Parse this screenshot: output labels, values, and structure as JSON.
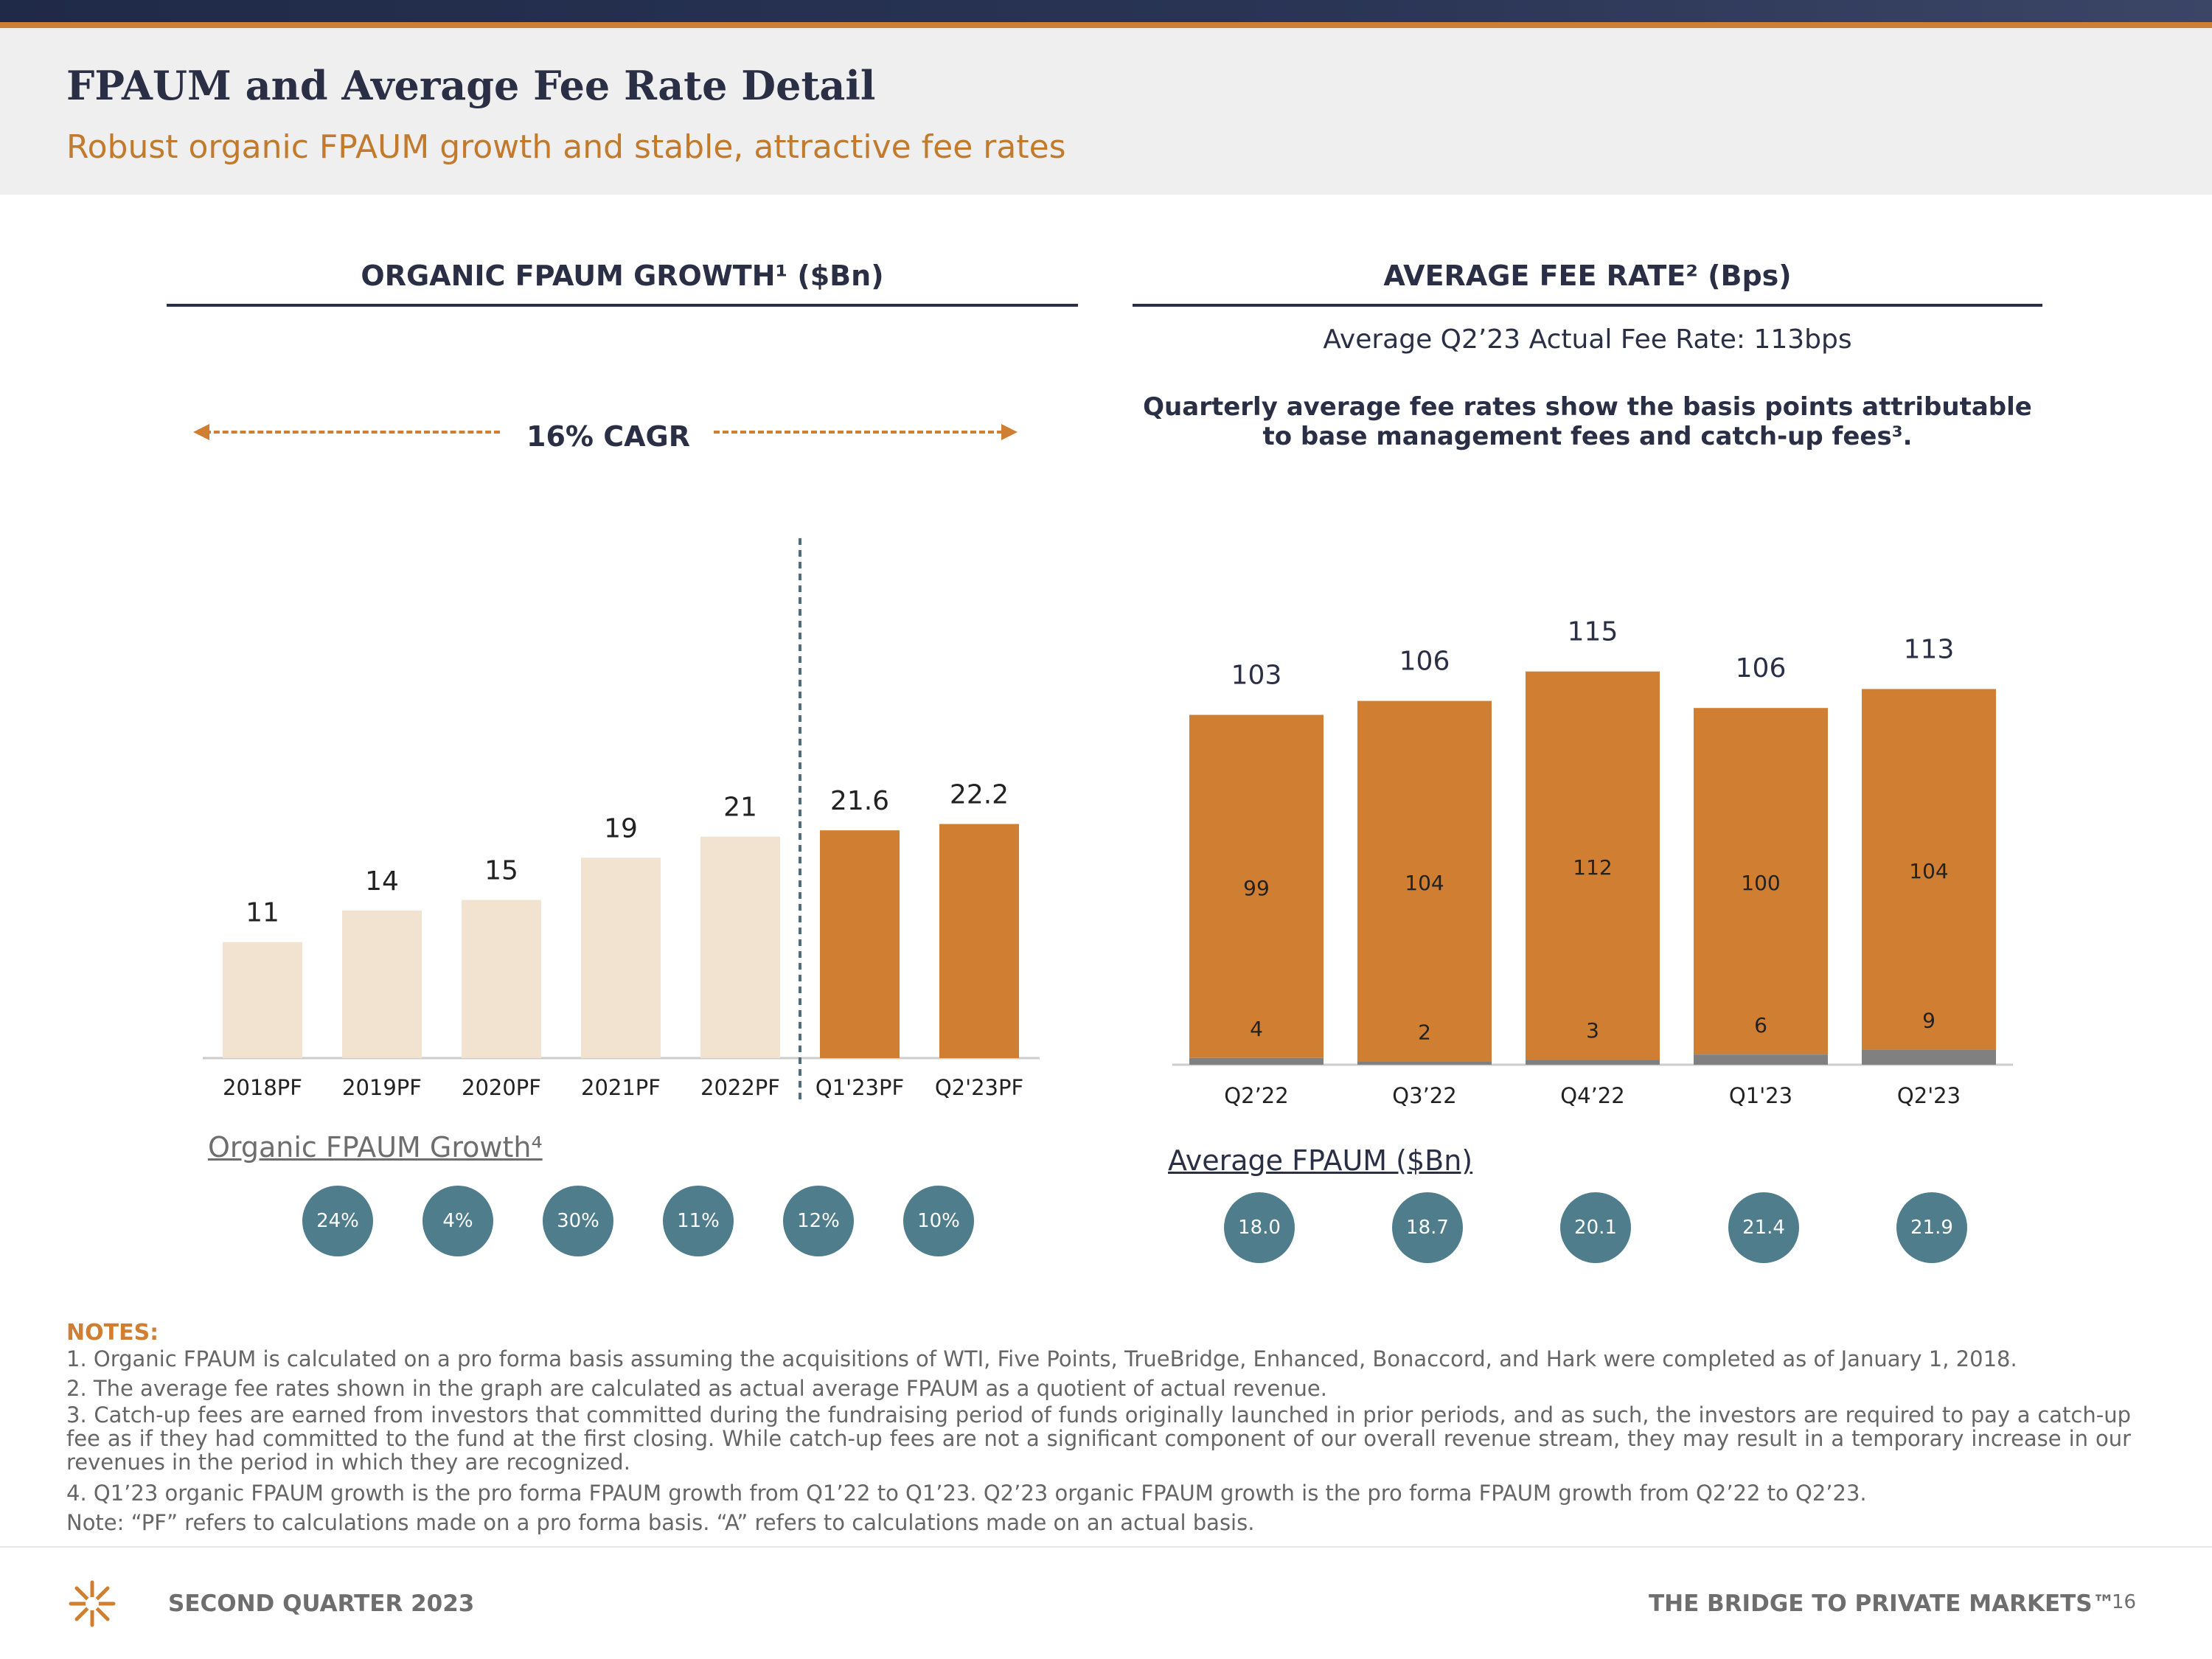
{
  "header": {
    "title": "FPAUM and Average Fee Rate Detail",
    "subtitle": "Robust organic FPAUM growth and stable, attractive fee rates"
  },
  "left_section": {
    "heading": "ORGANIC FPAUM GROWTH¹ ($Bn)",
    "cagr_label": "16% CAGR",
    "growth_label": "Organic FPAUM Growth⁴",
    "growth_rates": [
      "24%",
      "4%",
      "30%",
      "11%",
      "12%",
      "10%"
    ]
  },
  "right_section": {
    "heading": "AVERAGE FEE RATE² (Bps)",
    "actual_note": "Average Q2’23 Actual Fee Rate: 113bps",
    "description_line1": "Quarterly average fee rates show the basis points attributable",
    "description_line2": "to base management fees and catch-up fees³.",
    "fpaum_label": "Average FPAUM ($Bn)",
    "avg_fpaum": [
      "18.0",
      "18.7",
      "20.1",
      "21.4",
      "21.9"
    ]
  },
  "chart_data": [
    {
      "type": "bar",
      "title": "ORGANIC FPAUM GROWTH¹ ($Bn)",
      "categories": [
        "2018PF",
        "2019PF",
        "2020PF",
        "2021PF",
        "2022PF",
        "Q1'23PF",
        "Q2'23PF"
      ],
      "values": [
        11,
        14,
        15,
        19,
        21,
        21.6,
        22.2
      ],
      "labels": [
        "11",
        "14",
        "15",
        "19",
        "21",
        "21.6",
        "22.2"
      ],
      "colors": [
        "#f2e2d0",
        "#f2e2d0",
        "#f2e2d0",
        "#f2e2d0",
        "#f2e2d0",
        "#d07f32",
        "#d07f32"
      ],
      "divider_after_index": 4,
      "ylim": [
        0,
        25
      ]
    },
    {
      "type": "bar",
      "stacked": true,
      "title": "AVERAGE FEE RATE² (Bps)",
      "categories": [
        "Q2’22",
        "Q3’22",
        "Q4’22",
        "Q1'23",
        "Q2'23"
      ],
      "totals": [
        103,
        106,
        115,
        106,
        113
      ],
      "series": [
        {
          "name": "Catch-up fees",
          "values": [
            4,
            2,
            3,
            6,
            9
          ],
          "color": "#808080"
        },
        {
          "name": "Base management fees",
          "values": [
            99,
            104,
            112,
            100,
            104
          ],
          "color": "#d07f32"
        }
      ],
      "ylim": [
        0,
        130
      ]
    }
  ],
  "notes": {
    "heading": "NOTES:",
    "items": [
      "1. Organic FPAUM is calculated on a pro forma basis assuming the acquisitions of WTI, Five Points, TrueBridge, Enhanced, Bonaccord, and Hark were completed as of January 1, 2018.",
      "2. The average fee rates shown in the graph are calculated as actual average FPAUM as a quotient of actual revenue.",
      "3. Catch-up fees are earned from investors that committed during the fundraising period of funds originally launched in prior periods, and as such, the investors are required to pay a catch-up fee as if they had committed to the fund at the first closing. While catch-up fees are not a significant component of our overall revenue stream, they may result in a temporary increase in our revenues in the period in which they are recognized.",
      "4. Q1’23 organic FPAUM growth is the pro forma FPAUM growth from Q1’22 to Q1’23. Q2’23 organic FPAUM growth is the pro forma FPAUM growth from Q2’22 to Q2’23."
    ],
    "footnote": "Note: “PF” refers to calculations made on a pro forma basis. “A” refers to calculations made on an actual basis."
  },
  "footer": {
    "left": "SECOND QUARTER 2023",
    "right": "THE BRIDGE TO PRIVATE MARKETS™",
    "page": "16"
  }
}
